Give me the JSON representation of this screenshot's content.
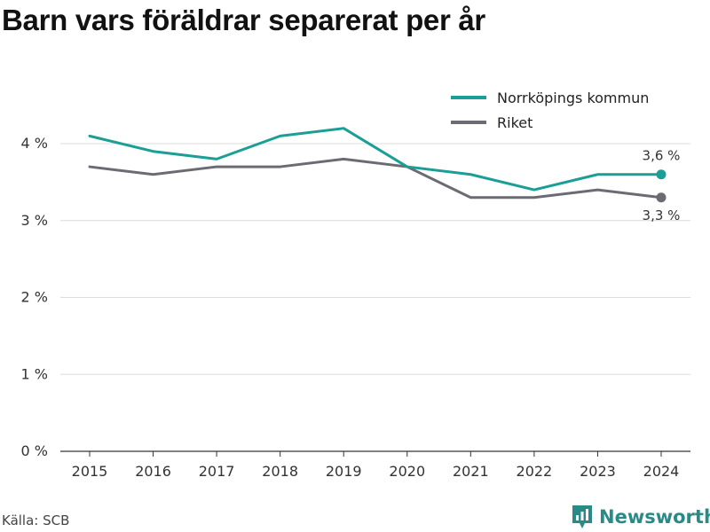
{
  "title": "Barn vars föräldrar separerat per år",
  "source": "Källa: SCB",
  "brand": {
    "name": "Newsworthy",
    "icon": "newsworthy-logo-icon",
    "color": "#2a8a88"
  },
  "chart_data": {
    "type": "line",
    "x": [
      "2015",
      "2016",
      "2017",
      "2018",
      "2019",
      "2020",
      "2021",
      "2022",
      "2023",
      "2024"
    ],
    "ylim": [
      0,
      4.6
    ],
    "yticks": [
      0,
      1,
      2,
      3,
      4
    ],
    "ytick_labels": [
      "0 %",
      "1 %",
      "2 %",
      "3 %",
      "4 %"
    ],
    "grid": true,
    "legend_position": "top-right",
    "series": [
      {
        "name": "Norrköpings kommun",
        "color": "#1a9e95",
        "values": [
          4.1,
          3.9,
          3.8,
          4.1,
          4.2,
          3.7,
          3.6,
          3.4,
          3.6,
          3.6
        ],
        "end_label": "3,6 %"
      },
      {
        "name": "Riket",
        "color": "#6b6b73",
        "values": [
          3.7,
          3.6,
          3.7,
          3.7,
          3.8,
          3.7,
          3.3,
          3.3,
          3.4,
          3.3
        ],
        "end_label": "3,3 %"
      }
    ]
  }
}
